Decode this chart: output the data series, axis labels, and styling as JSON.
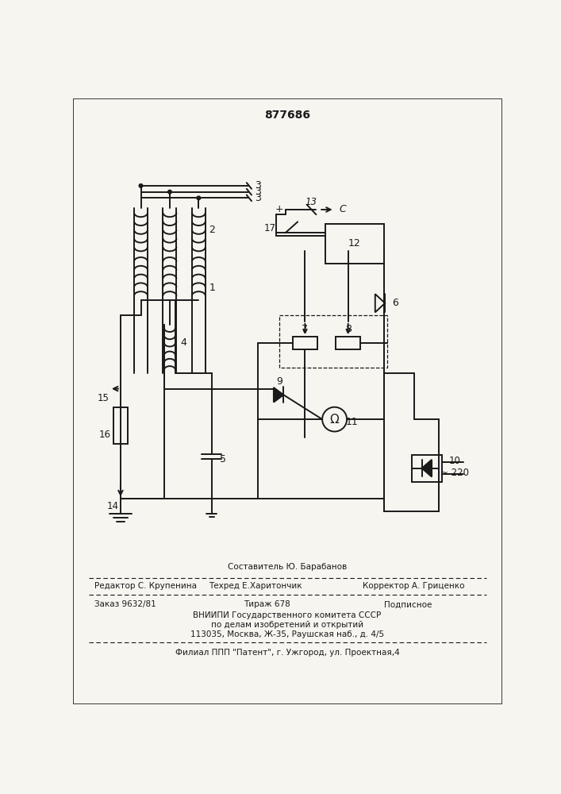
{
  "patent_number": "877686",
  "bg": "#f7f5f0",
  "lc": "#1a1a1a",
  "footer_composer": "Составитель Ю. Барабанов",
  "footer_editor": "Редактор С. Крупенина",
  "footer_techred": "Техред Е.Харитончик",
  "footer_corrector": "Корректор А. Гриценко",
  "footer_order": "Заказ 9632/81",
  "footer_tiraz": "Тираж 678",
  "footer_podpisnoe": "Подписное",
  "footer_org1": "ВНИИПИ Государственного комитета СССР",
  "footer_org2": "по делам изобретений и открытий",
  "footer_org3": "113035, Москва, Ж-35, Раушская наб., д. 4/5",
  "footer_filial": "Филиал ППП \"Патент\", г. Ужгород, ул. Проектная,4"
}
